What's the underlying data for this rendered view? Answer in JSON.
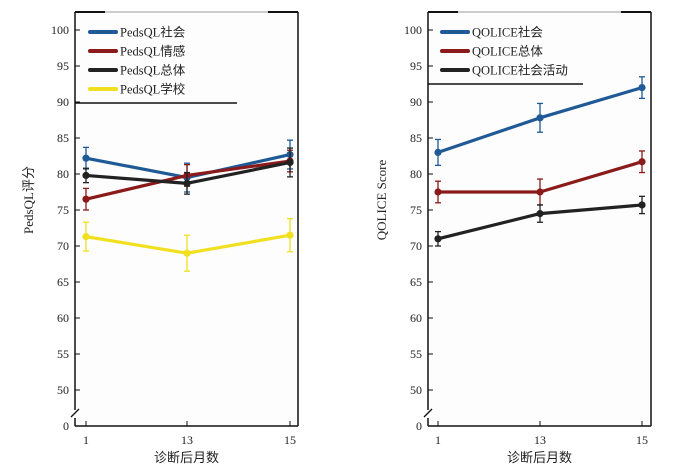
{
  "chart_data": [
    {
      "type": "line",
      "title": "",
      "xlabel": "诊断后月数",
      "ylabel": "PedsQL评分",
      "x": [
        1,
        13,
        15
      ],
      "x_ticks": [
        "1",
        "13",
        "15"
      ],
      "y_ticks": [
        "0",
        "50",
        "55",
        "60",
        "65",
        "70",
        "75",
        "80",
        "85",
        "90",
        "95",
        "100"
      ],
      "ylim": [
        0,
        100
      ],
      "axis_break": "between 0 and 50",
      "grid": false,
      "legend_position": "top-left",
      "series": [
        {
          "name": "PedsQL社会",
          "color": "#1f5a96",
          "values": [
            82.2,
            79.5,
            82.7
          ],
          "error": [
            1.5,
            2.0,
            2.0
          ]
        },
        {
          "name": "PedsQL情感",
          "color": "#8b1a1a",
          "values": [
            76.5,
            79.8,
            81.8
          ],
          "error": [
            1.5,
            1.5,
            1.5
          ]
        },
        {
          "name": "PedsQL总体",
          "color": "#222222",
          "values": [
            79.8,
            78.7,
            81.6
          ],
          "error": [
            1.0,
            1.5,
            2.0
          ]
        },
        {
          "name": "PedsQL学校",
          "color": "#f0e020",
          "values": [
            71.3,
            69.0,
            71.5
          ],
          "error": [
            2.0,
            2.5,
            2.3
          ]
        }
      ]
    },
    {
      "type": "line",
      "title": "",
      "xlabel": "诊断后月数",
      "ylabel": "QOLICE Score",
      "x": [
        1,
        13,
        15
      ],
      "x_ticks": [
        "1",
        "13",
        "15"
      ],
      "y_ticks": [
        "0",
        "50",
        "55",
        "60",
        "65",
        "70",
        "75",
        "80",
        "85",
        "90",
        "95",
        "100"
      ],
      "ylim": [
        0,
        100
      ],
      "axis_break": "between 0 and 50",
      "grid": false,
      "legend_position": "top-left",
      "series": [
        {
          "name": "QOLICE社会",
          "color": "#1f5a96",
          "values": [
            83.0,
            87.8,
            92.0
          ],
          "error": [
            1.8,
            2.0,
            1.5
          ]
        },
        {
          "name": "QOLICE总体",
          "color": "#8b1a1a",
          "values": [
            77.5,
            77.5,
            81.7
          ],
          "error": [
            1.5,
            1.8,
            1.5
          ]
        },
        {
          "name": "QOLICE社会活动",
          "color": "#222222",
          "values": [
            71.0,
            74.5,
            75.7
          ],
          "error": [
            1.0,
            1.2,
            1.2
          ]
        }
      ]
    }
  ]
}
